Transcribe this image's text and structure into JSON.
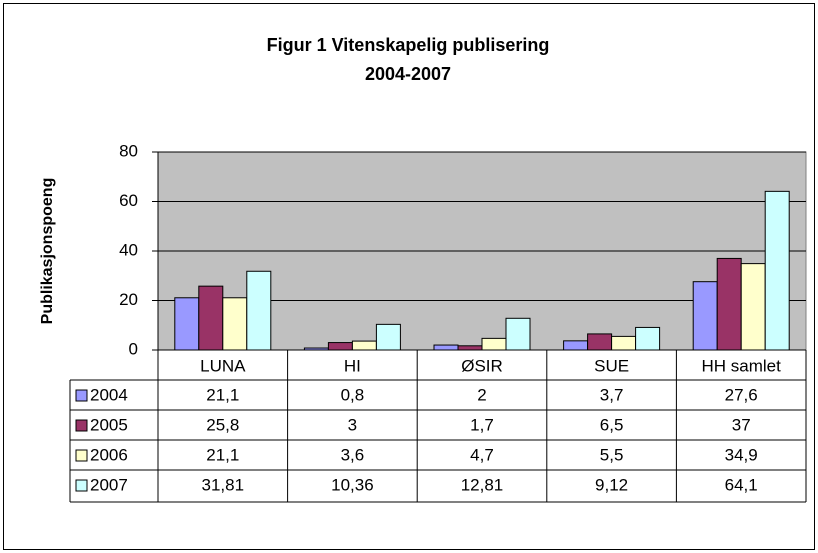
{
  "chart_data": {
    "type": "bar",
    "title": "Figur 1 Vitenskapelig publisering",
    "subtitle": "2004-2007",
    "y_label": "Publikasjonspoeng",
    "categories": [
      "LUNA",
      "HI",
      "ØSIR",
      "SUE",
      "HH samlet"
    ],
    "series": [
      {
        "name": "2004",
        "color": "#9999ff",
        "values": [
          21.1,
          0.8,
          2,
          3.7,
          27.6
        ],
        "value_labels": [
          "21,1",
          "0,8",
          "2",
          "3,7",
          "27,6"
        ]
      },
      {
        "name": "2005",
        "color": "#993366",
        "values": [
          25.8,
          3,
          1.7,
          6.5,
          37
        ],
        "value_labels": [
          "25,8",
          "3",
          "1,7",
          "6,5",
          "37"
        ]
      },
      {
        "name": "2006",
        "color": "#ffffcc",
        "values": [
          21.1,
          3.6,
          4.7,
          5.5,
          34.9
        ],
        "value_labels": [
          "21,1",
          "3,6",
          "4,7",
          "5,5",
          "34,9"
        ]
      },
      {
        "name": "2007",
        "color": "#ccffff",
        "values": [
          31.81,
          10.36,
          12.81,
          9.12,
          64.1
        ],
        "value_labels": [
          "31,81",
          "10,36",
          "12,81",
          "9,12",
          "64,1"
        ]
      }
    ],
    "ylim": [
      0,
      80
    ],
    "yticks": [
      0,
      20,
      40,
      60,
      80
    ],
    "grid": true,
    "plot_background": "#c0c0c0"
  }
}
